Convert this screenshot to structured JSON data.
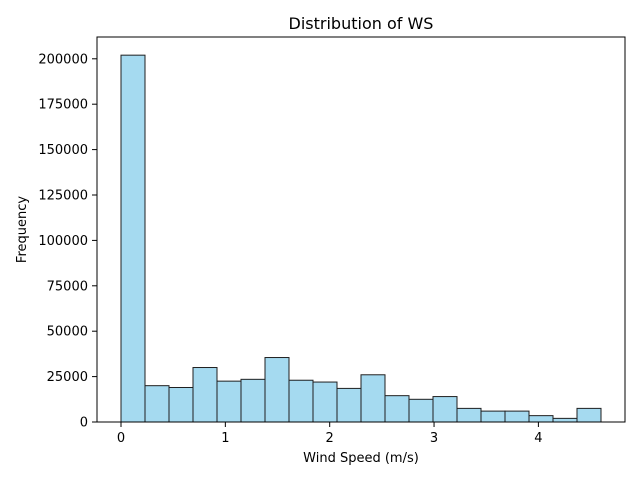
{
  "chart_data": {
    "type": "bar",
    "title": "Distribution of WS",
    "xlabel": "Wind Speed (m/s)",
    "ylabel": "Frequency",
    "xlim": [
      -0.23,
      4.83
    ],
    "ylim": [
      0,
      212000
    ],
    "grid": false,
    "legend": "none",
    "bar_color": "#87ceeb",
    "bar_edge_color": "#1f1f1f",
    "x_ticks": [
      0,
      1,
      2,
      3,
      4
    ],
    "x_tick_labels": [
      "0",
      "1",
      "2",
      "3",
      "4"
    ],
    "y_ticks": [
      0,
      25000,
      50000,
      75000,
      100000,
      125000,
      150000,
      175000,
      200000
    ],
    "y_tick_labels": [
      "0",
      "25000",
      "50000",
      "75000",
      "100000",
      "125000",
      "150000",
      "175000",
      "200000"
    ],
    "bin_edges": [
      0,
      0.23,
      0.46,
      0.69,
      0.92,
      1.15,
      1.38,
      1.61,
      1.84,
      2.07,
      2.3,
      2.53,
      2.76,
      2.99,
      3.22,
      3.45,
      3.68,
      3.91,
      4.14,
      4.37,
      4.6
    ],
    "values": [
      202000,
      20000,
      19000,
      30000,
      22500,
      23500,
      35500,
      23000,
      22000,
      18500,
      26000,
      14500,
      12500,
      14000,
      7500,
      6000,
      6000,
      3500,
      2000,
      7500
    ]
  }
}
